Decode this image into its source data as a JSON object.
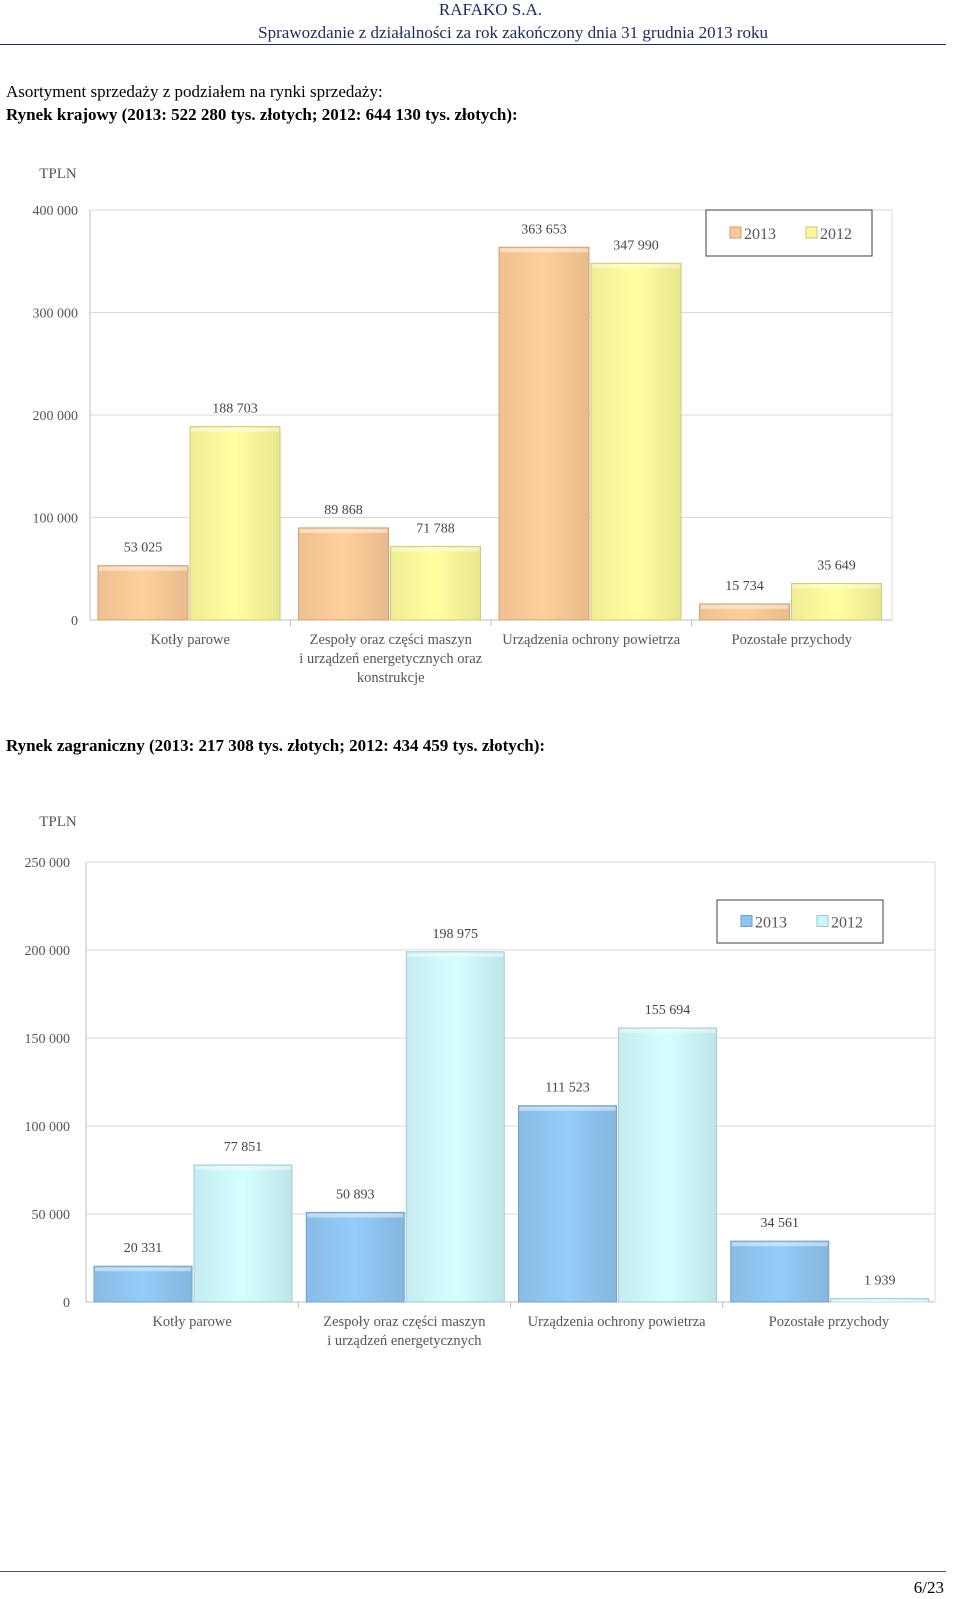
{
  "header": {
    "company": "RAFAKO S.A.",
    "report": "Sprawozdanie z działalności za rok zakończony dnia 31 grudnia 2013 roku"
  },
  "intro": {
    "line1": "Asortyment sprzedaży z podziałem na rynki sprzedaży:",
    "domestic_heading": "Rynek krajowy (2013: 522 280 tys. złotych; 2012: 644 130 tys. złotych):",
    "foreign_heading": "Rynek zagraniczny (2013: 217 308 tys. złotych; 2012: 434 459 tys. złotych):"
  },
  "chart_data": [
    {
      "type": "bar",
      "ylabel": "TPLN",
      "ylim": [
        0,
        400000
      ],
      "yticks": [
        0,
        100000,
        200000,
        300000,
        400000
      ],
      "ytick_labels": [
        "0",
        "100 000",
        "200 000",
        "300 000",
        "400 000"
      ],
      "categories": [
        [
          "Kotły parowe"
        ],
        [
          "Zespoły oraz części maszyn",
          "i urządzeń energetycznych oraz",
          "konstrukcje"
        ],
        [
          "Urządzenia ochrony powietrza"
        ],
        [
          "Pozostałe przychody"
        ]
      ],
      "series": [
        {
          "name": "2013",
          "values": [
            53025,
            89868,
            363653,
            15734
          ],
          "labels": [
            "53 025",
            "89 868",
            "363 653",
            "15 734"
          ]
        },
        {
          "name": "2012",
          "values": [
            188703,
            71788,
            347990,
            35649
          ],
          "labels": [
            "188 703",
            "71 788",
            "347 990",
            "35 649"
          ]
        }
      ],
      "legend": "top-right",
      "colors": {
        "2013": "#f9c896",
        "2012": "#fbf69a"
      }
    },
    {
      "type": "bar",
      "ylabel": "TPLN",
      "ylim": [
        0,
        250000
      ],
      "yticks": [
        0,
        50000,
        100000,
        150000,
        200000,
        250000
      ],
      "ytick_labels": [
        "0",
        "50 000",
        "100 000",
        "150 000",
        "200 000",
        "250 000"
      ],
      "categories": [
        [
          "Kotły parowe"
        ],
        [
          "Zespoły oraz części maszyn",
          "i urządzeń energetycznych"
        ],
        [
          "Urządzenia ochrony powietrza"
        ],
        [
          "Pozostałe przychody"
        ]
      ],
      "series": [
        {
          "name": "2013",
          "values": [
            20331,
            50893,
            111523,
            34561
          ],
          "labels": [
            "20 331",
            "50 893",
            "111 523",
            "34 561"
          ]
        },
        {
          "name": "2012",
          "values": [
            77851,
            198975,
            155694,
            1939
          ],
          "labels": [
            "77 851",
            "198 975",
            "155 694",
            "1 939"
          ]
        }
      ],
      "legend": "top-right",
      "colors": {
        "2013": "#8ec4f0",
        "2012": "#ccf6fb"
      }
    }
  ],
  "footer": {
    "page": "6/23"
  }
}
